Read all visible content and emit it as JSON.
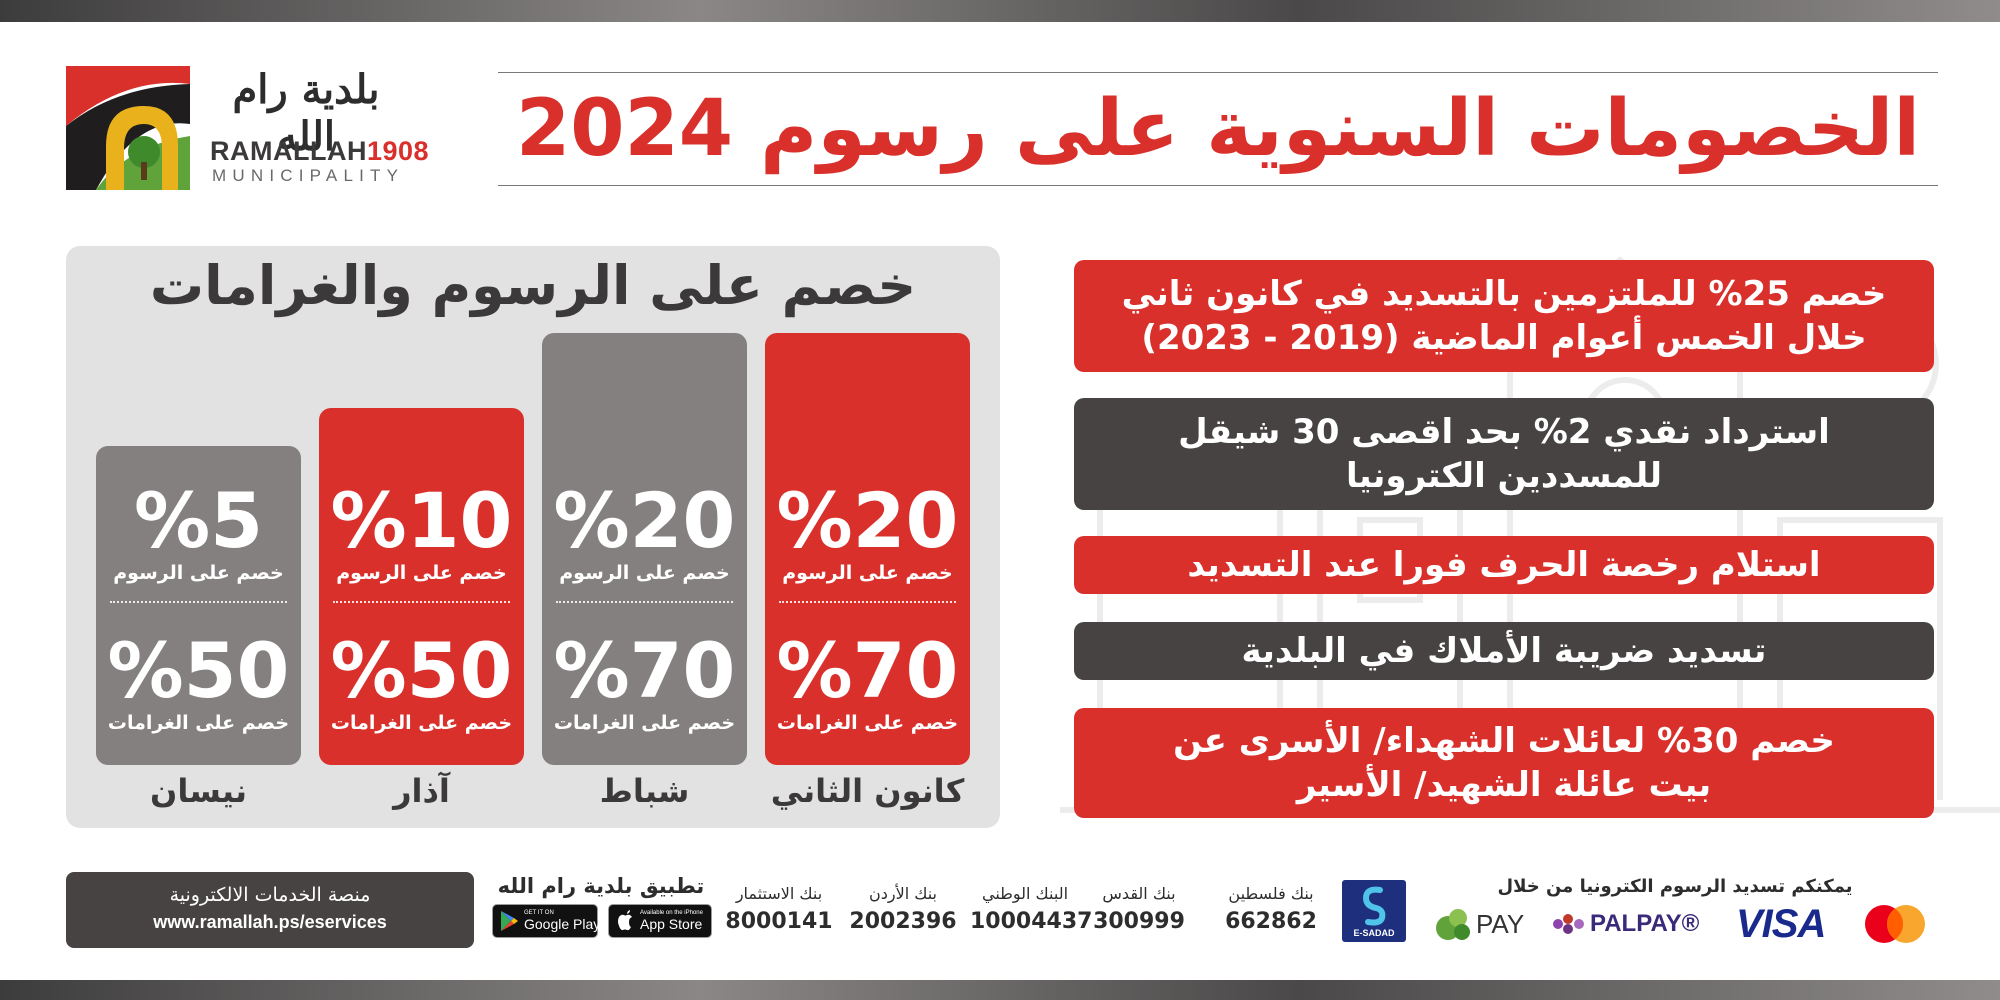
{
  "logo": {
    "arabic_name": "بلدية رام الله",
    "english_name": "RAMALLAH",
    "year": "1908",
    "subtitle": "MUNICIPALITY"
  },
  "headline": "الخصومات السنوية على رسوم 2024",
  "panel": {
    "title": "خصم على الرسوم والغرامات",
    "columns": [
      {
        "month": "كانون الثاني",
        "fees_value": "%20",
        "fees_label": "خصم على الرسوم",
        "fines_value": "%70",
        "fines_label": "خصم على الغرامات",
        "color": "#d9302c"
      },
      {
        "month": "شباط",
        "fees_value": "%20",
        "fees_label": "خصم على الرسوم",
        "fines_value": "%70",
        "fines_label": "خصم على الغرامات",
        "color": "#858080"
      },
      {
        "month": "آذار",
        "fees_value": "%10",
        "fees_label": "خصم على الرسوم",
        "fines_value": "%50",
        "fines_label": "خصم على الغرامات",
        "color": "#d9302c"
      },
      {
        "month": "نيسان",
        "fees_value": "%5",
        "fees_label": "خصم على الرسوم",
        "fines_value": "%50",
        "fines_label": "خصم على الغرامات",
        "color": "#858080"
      }
    ]
  },
  "benefits": [
    {
      "line1": "خصم 25% للملتزمين بالتسديد في كانون ثاني",
      "line2": "خلال الخمس أعوام الماضية (2019 - 2023)",
      "color": "#d9302c"
    },
    {
      "line1": "استرداد نقدي 2% بحد اقصى 30 شيقل",
      "line2": "للمسددين الكترونيا",
      "color": "#484343"
    },
    {
      "line1": "استلام رخصة الحرف فورا عند التسديد",
      "line2": "",
      "color": "#d9302c"
    },
    {
      "line1": "تسديد ضريبة الأملاك في البلدية",
      "line2": "",
      "color": "#484343"
    },
    {
      "line1": "خصم 30% لعائلات الشهداء/ الأسرى عن",
      "line2": "بيت عائلة الشهيد/ الأسير",
      "color": "#d9302c"
    }
  ],
  "footer": {
    "eservices_label": "منصة الخدمات الالكترونية",
    "eservices_url": "www.ramallah.ps/eservices",
    "app_title": "تطبيق بلدية رام الله",
    "google_play_small": "GET IT ON",
    "google_play_big": "Google Play",
    "app_store_small": "Available on the iPhone",
    "app_store_big": "App Store",
    "banks": [
      {
        "name": "بنك الاستثمار",
        "number": "8000141"
      },
      {
        "name": "بنك الأردن",
        "number": "2002396"
      },
      {
        "name": "البنك الوطني",
        "number": "10004437"
      },
      {
        "name": "بنك القدس",
        "number": "300999"
      },
      {
        "name": "بنك فلسطين",
        "number": "662862"
      }
    ],
    "esadad_label": "E-SADAD",
    "payment_title": "يمكنكم تسديد الرسوم الكترونيا من خلال",
    "payment_methods": [
      "PAY",
      "PALPAY®",
      "VISA"
    ],
    "mastercard_icon": "mastercard-icon",
    "colors": {
      "red": "#d9302c",
      "dark": "#484343",
      "gray": "#858080"
    }
  }
}
